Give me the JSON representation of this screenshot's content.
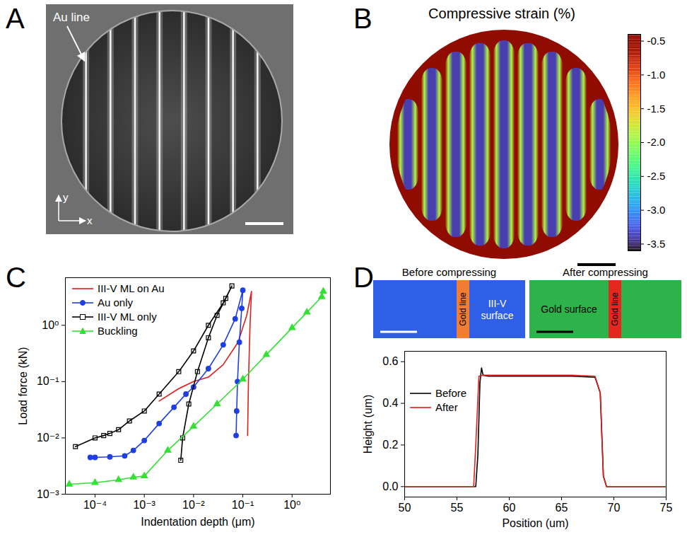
{
  "panels": {
    "A": {
      "panel": "A",
      "type": "image",
      "annotation": "Au line",
      "axis_labels": [
        "x",
        "y"
      ]
    },
    "B": {
      "panel": "B",
      "type": "heatmap",
      "title": "Compressive strain (%)",
      "colorbar": {
        "range": [
          -3.6,
          -0.4
        ],
        "ticks": [
          -0.5,
          {
            "value": -1,
            "label": "-1.0"
          },
          -1.5,
          {
            "value": -2,
            "label": "-2.0"
          },
          -2.5,
          {
            "value": -3,
            "label": "-3.0"
          },
          -3.5
        ]
      },
      "strip_center_value": -3.4,
      "strip_edge_value": -0.4
    },
    "D": {
      "panel": "D",
      "images": [
        {
          "title": "Before compressing",
          "line_label": "Gold line",
          "region_label": "III-V surface",
          "colors": [
            "#2f5fe6",
            "#f07d32"
          ]
        },
        {
          "title": "After compressing",
          "line_label": "Gold line",
          "region_label": "Gold surface",
          "colors": [
            "#2db34a",
            "#e5281f"
          ]
        }
      ]
    }
  },
  "chart_data": [
    {
      "panel": "C",
      "type": "line",
      "log": true,
      "x_label": "Indentation depth (μm)",
      "y_label": "Load force (kN)",
      "xlim": [
        2.5e-05,
        6
      ],
      "ylim": [
        0.001,
        7
      ],
      "xticks": [
        {
          "value": 0.0001,
          "label": "10⁻⁴"
        },
        {
          "value": 0.001,
          "label": "10⁻³"
        },
        {
          "value": 0.01,
          "label": "10⁻²"
        },
        {
          "value": 0.1,
          "label": "10⁻¹"
        },
        {
          "value": 1,
          "label": "10⁰"
        }
      ],
      "yticks": [
        {
          "value": 0.001,
          "label": "10⁻³"
        },
        {
          "value": 0.01,
          "label": "10⁻²"
        },
        {
          "value": 0.1,
          "label": "10⁻¹"
        },
        {
          "value": 1,
          "label": "10⁰"
        }
      ],
      "grid": false,
      "legend": "top-left",
      "series": [
        {
          "name": "III-V ML on Au",
          "color": "#e0201b",
          "x": [
            0.002,
            0.005,
            0.01,
            0.02,
            0.04,
            0.08,
            0.12,
            0.15,
            0.14,
            0.13,
            0.125
          ],
          "values": [
            0.045,
            0.075,
            0.1,
            0.12,
            0.2,
            0.5,
            1.5,
            4,
            1,
            0.1,
            0.011
          ]
        },
        {
          "name": "Au only",
          "color": "#1f3fe0",
          "marker": "circle",
          "x": [
            8e-05,
            0.0001,
            0.0002,
            0.0004,
            0.0006,
            0.001,
            0.002,
            0.004,
            0.007,
            0.01,
            0.02,
            0.04,
            0.07,
            0.1,
            0.095,
            0.085,
            0.078,
            0.075,
            0.073
          ],
          "values": [
            0.0045,
            0.0045,
            0.0046,
            0.0048,
            0.006,
            0.009,
            0.018,
            0.035,
            0.06,
            0.08,
            0.17,
            0.45,
            1.3,
            4.2,
            2,
            0.5,
            0.1,
            0.03,
            0.011
          ]
        },
        {
          "name": "III-V ML only",
          "color": "#000000",
          "marker": "open-square",
          "x": [
            4e-05,
            0.0001,
            0.00015,
            0.0002,
            0.0003,
            0.0005,
            0.001,
            0.002,
            0.005,
            0.01,
            0.02,
            0.04,
            0.06,
            0.045,
            0.03,
            0.02,
            0.012,
            0.008,
            0.006,
            0.0055
          ],
          "values": [
            0.007,
            0.01,
            0.011,
            0.012,
            0.014,
            0.02,
            0.03,
            0.06,
            0.15,
            0.35,
            1,
            2.5,
            5,
            3,
            1.5,
            0.6,
            0.15,
            0.04,
            0.01,
            0.004
          ]
        },
        {
          "name": "Buckling",
          "color": "#33e033",
          "marker": "triangle",
          "x": [
            3e-05,
            0.0001,
            0.0003,
            0.0006,
            0.001,
            0.003,
            0.01,
            0.03,
            0.1,
            0.3,
            1,
            2,
            4,
            4.3
          ],
          "values": [
            0.0015,
            0.0016,
            0.0018,
            0.002,
            0.0021,
            0.006,
            0.016,
            0.04,
            0.11,
            0.3,
            0.9,
            1.7,
            3.2,
            4
          ]
        }
      ]
    },
    {
      "type": "line",
      "x_label": "Position (um)",
      "y_label": "Height (um)",
      "xlim": [
        50,
        75
      ],
      "ylim": [
        -0.05,
        0.65
      ],
      "xticks": [
        50,
        55,
        60,
        65,
        70,
        75
      ],
      "yticks": [
        {
          "value": 0,
          "label": "0.0"
        },
        0.2,
        0.4,
        0.6
      ],
      "grid": false,
      "legend": "top-left",
      "series": [
        {
          "name": "Before",
          "color": "#000000",
          "x": [
            50,
            56.8,
            57.0,
            57.2,
            57.35,
            57.5,
            58,
            62,
            66,
            68.2,
            68.7,
            69.0,
            69.3,
            75
          ],
          "values": [
            0,
            0,
            0.15,
            0.5,
            0.57,
            0.535,
            0.53,
            0.53,
            0.53,
            0.525,
            0.45,
            0.05,
            0,
            0
          ]
        },
        {
          "name": "After",
          "color": "#e0201b",
          "x": [
            50,
            56.6,
            56.8,
            57.1,
            57.5,
            62,
            66,
            68.2,
            68.7,
            69.0,
            69.3,
            75
          ],
          "values": [
            0,
            0,
            0.2,
            0.53,
            0.535,
            0.535,
            0.535,
            0.53,
            0.45,
            0.05,
            0,
            0
          ]
        }
      ]
    }
  ]
}
